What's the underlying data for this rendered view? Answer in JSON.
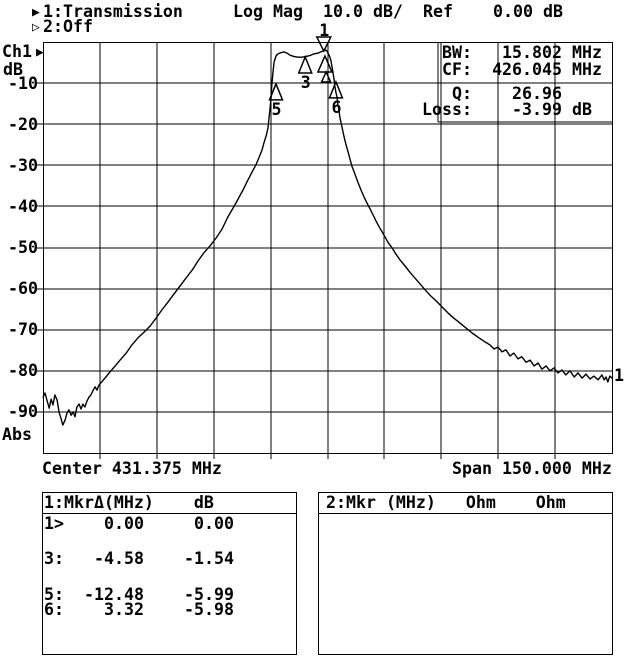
{
  "header": {
    "ch1_arrow": "▶",
    "ch1_title": "1:Transmission",
    "format": "Log Mag",
    "scale": "10.0 dB/",
    "ref_label": "Ref",
    "ref_value": "0.00 dB",
    "ch2_arrow": "▷",
    "ch2_title": "2:Off"
  },
  "axis": {
    "ch_label": "Ch1",
    "ch_arrow": "▶",
    "unit_label": "dB",
    "abs_label": "Abs",
    "y_tick_labels": [
      "-10",
      "-20",
      "-30",
      "-40",
      "-50",
      "-60",
      "-70",
      "-80",
      "-90"
    ],
    "center_label": "Center 431.375 MHz",
    "span_label": "Span 150.000 MHz"
  },
  "readout": {
    "rows": [
      {
        "label": "BW:",
        "num": "15.802",
        "unit": " MHz"
      },
      {
        "label": "CF:",
        "num": "426.045",
        "unit": " MHz"
      },
      {
        "label": "Q:",
        "num": "26.96",
        "unit": ""
      },
      {
        "label": "Loss:",
        "num": "-3.99",
        "unit": " dB"
      }
    ]
  },
  "marker_table": {
    "left": {
      "header": "1:MkrΔ(MHz)    dB",
      "rows": [
        {
          "id": "1>",
          "delta": "0.00",
          "db": "0.00"
        },
        {
          "id": "3:",
          "delta": "-4.58",
          "db": "-1.54"
        },
        {
          "id": "5:",
          "delta": "-12.48",
          "db": "-5.99"
        },
        {
          "id": "6:",
          "delta": "3.32",
          "db": "-5.98"
        }
      ]
    },
    "right": {
      "header": "2:Mkr (MHz)   Ohm    Ohm"
    }
  },
  "chart_data": {
    "type": "line",
    "title": "Ch1 1:Transmission Log Mag 10.0 dB/ Ref 0.00 dB",
    "xlabel": "Frequency (MHz), Center 431.375 MHz, Span 150.000 MHz",
    "ylabel": "dB (Abs)",
    "x_center": 431.375,
    "x_span": 150.0,
    "x_range": [
      356.375,
      506.375
    ],
    "y_range": [
      -100,
      0
    ],
    "y_ticks": [
      -10,
      -20,
      -30,
      -40,
      -50,
      -60,
      -70,
      -80,
      -90
    ],
    "grid_divisions": [
      10,
      10
    ],
    "bandwidth_MHz": 15.802,
    "center_freq_MHz": 426.045,
    "q_factor": 26.96,
    "loss_dB": -3.99,
    "trace_end_label": "1",
    "markers": [
      {
        "label": "1",
        "shape": "down",
        "f": 430.4,
        "db": -2.2,
        "w": 14,
        "h": 14
      },
      {
        "label": "",
        "shape": "up",
        "f": 430.7,
        "db": -3.4,
        "w": 14,
        "h": 16
      },
      {
        "label": "",
        "shape": "up",
        "f": 431.0,
        "db": -7.3,
        "w": 9,
        "h": 10
      },
      {
        "label": "3",
        "shape": "up",
        "f": 425.5,
        "db": -3.65,
        "w": 13,
        "h": 16
      },
      {
        "label": "5",
        "shape": "up",
        "f": 417.8,
        "db": -10.2,
        "w": 13,
        "h": 16
      },
      {
        "label": "6",
        "shape": "up",
        "f": 433.6,
        "db": -9.7,
        "w": 13,
        "h": 16
      }
    ],
    "series": [
      {
        "name": "transmission-trace",
        "points": [
          [
            356.4,
            -86.4
          ],
          [
            356.9,
            -85.4
          ],
          [
            357.4,
            -87.1
          ],
          [
            358.0,
            -89.1
          ],
          [
            358.5,
            -86.9
          ],
          [
            359.0,
            -88.3
          ],
          [
            359.5,
            -85.9
          ],
          [
            360.1,
            -87.1
          ],
          [
            360.6,
            -90.0
          ],
          [
            361.1,
            -91.5
          ],
          [
            361.6,
            -93.2
          ],
          [
            362.2,
            -92.0
          ],
          [
            362.7,
            -90.3
          ],
          [
            363.2,
            -89.5
          ],
          [
            363.8,
            -90.8
          ],
          [
            364.3,
            -90.0
          ],
          [
            364.8,
            -91.2
          ],
          [
            365.3,
            -88.8
          ],
          [
            365.9,
            -88.1
          ],
          [
            366.4,
            -89.3
          ],
          [
            366.9,
            -88.1
          ],
          [
            367.4,
            -88.8
          ],
          [
            368.0,
            -87.3
          ],
          [
            368.5,
            -86.4
          ],
          [
            369.0,
            -85.9
          ],
          [
            369.6,
            -84.7
          ],
          [
            370.1,
            -83.9
          ],
          [
            370.6,
            -84.7
          ],
          [
            371.1,
            -83.5
          ],
          [
            372.7,
            -81.8
          ],
          [
            374.0,
            -80.3
          ],
          [
            375.4,
            -78.8
          ],
          [
            376.7,
            -77.4
          ],
          [
            378.3,
            -75.7
          ],
          [
            379.8,
            -73.7
          ],
          [
            381.4,
            -72.0
          ],
          [
            383.0,
            -70.6
          ],
          [
            384.6,
            -69.1
          ],
          [
            386.2,
            -67.2
          ],
          [
            387.7,
            -65.2
          ],
          [
            389.3,
            -63.3
          ],
          [
            390.9,
            -61.3
          ],
          [
            392.5,
            -59.4
          ],
          [
            394.1,
            -57.4
          ],
          [
            395.7,
            -55.5
          ],
          [
            397.2,
            -53.3
          ],
          [
            398.8,
            -51.3
          ],
          [
            400.4,
            -49.6
          ],
          [
            402.0,
            -47.7
          ],
          [
            403.6,
            -45.5
          ],
          [
            405.1,
            -42.6
          ],
          [
            406.5,
            -40.4
          ],
          [
            407.8,
            -38.2
          ],
          [
            409.1,
            -36.0
          ],
          [
            410.4,
            -33.6
          ],
          [
            411.5,
            -31.6
          ],
          [
            412.5,
            -29.9
          ],
          [
            413.3,
            -28.2
          ],
          [
            414.1,
            -26.3
          ],
          [
            414.6,
            -24.6
          ],
          [
            415.2,
            -22.9
          ],
          [
            415.7,
            -20.9
          ],
          [
            415.9,
            -19.0
          ],
          [
            416.2,
            -16.5
          ],
          [
            416.5,
            -13.6
          ],
          [
            416.7,
            -10.5
          ],
          [
            417.0,
            -7.3
          ],
          [
            417.3,
            -4.9
          ],
          [
            417.8,
            -3.4
          ],
          [
            418.3,
            -2.9
          ],
          [
            419.1,
            -2.6
          ],
          [
            419.9,
            -2.4
          ],
          [
            420.7,
            -2.7
          ],
          [
            421.5,
            -3.2
          ],
          [
            422.5,
            -3.5
          ],
          [
            423.6,
            -3.7
          ],
          [
            424.6,
            -3.7
          ],
          [
            425.7,
            -3.5
          ],
          [
            426.7,
            -3.3
          ],
          [
            427.8,
            -2.9
          ],
          [
            428.9,
            -2.7
          ],
          [
            429.6,
            -2.4
          ],
          [
            430.4,
            -2.1
          ],
          [
            431.0,
            -2.0
          ],
          [
            431.2,
            -2.2
          ],
          [
            431.5,
            -2.7
          ],
          [
            432.0,
            -3.7
          ],
          [
            432.3,
            -4.6
          ],
          [
            432.5,
            -5.8
          ],
          [
            432.8,
            -7.3
          ],
          [
            433.1,
            -9.0
          ],
          [
            433.3,
            -10.7
          ],
          [
            433.6,
            -12.2
          ],
          [
            433.9,
            -13.6
          ],
          [
            434.1,
            -15.1
          ],
          [
            434.4,
            -16.5
          ],
          [
            434.6,
            -18.0
          ],
          [
            434.9,
            -19.5
          ],
          [
            435.2,
            -20.7
          ],
          [
            435.7,
            -22.9
          ],
          [
            436.2,
            -24.8
          ],
          [
            436.8,
            -26.8
          ],
          [
            437.3,
            -28.5
          ],
          [
            437.8,
            -30.2
          ],
          [
            438.6,
            -32.1
          ],
          [
            439.4,
            -34.1
          ],
          [
            440.2,
            -36.0
          ],
          [
            441.0,
            -37.7
          ],
          [
            441.8,
            -39.2
          ],
          [
            442.6,
            -40.6
          ],
          [
            443.4,
            -42.1
          ],
          [
            444.2,
            -43.6
          ],
          [
            445.2,
            -45.3
          ],
          [
            446.3,
            -47.0
          ],
          [
            447.3,
            -48.7
          ],
          [
            448.4,
            -50.1
          ],
          [
            449.4,
            -51.6
          ],
          [
            450.5,
            -53.0
          ],
          [
            451.8,
            -54.5
          ],
          [
            453.1,
            -56.0
          ],
          [
            454.4,
            -57.4
          ],
          [
            455.8,
            -58.9
          ],
          [
            457.1,
            -60.3
          ],
          [
            458.4,
            -61.6
          ],
          [
            460.0,
            -63.0
          ],
          [
            461.6,
            -64.5
          ],
          [
            463.1,
            -65.9
          ],
          [
            464.7,
            -67.2
          ],
          [
            466.3,
            -68.4
          ],
          [
            467.9,
            -69.6
          ],
          [
            469.5,
            -70.8
          ],
          [
            471.0,
            -71.8
          ],
          [
            472.6,
            -72.8
          ],
          [
            474.2,
            -73.7
          ],
          [
            475.3,
            -74.7
          ],
          [
            476.3,
            -74.2
          ],
          [
            477.4,
            -75.4
          ],
          [
            478.4,
            -74.9
          ],
          [
            479.5,
            -76.4
          ],
          [
            480.5,
            -75.7
          ],
          [
            481.6,
            -77.1
          ],
          [
            482.6,
            -76.6
          ],
          [
            483.7,
            -77.9
          ],
          [
            484.8,
            -77.4
          ],
          [
            485.8,
            -78.8
          ],
          [
            486.9,
            -78.1
          ],
          [
            487.9,
            -79.6
          ],
          [
            489.0,
            -78.8
          ],
          [
            490.0,
            -80.0
          ],
          [
            491.1,
            -79.3
          ],
          [
            492.1,
            -80.5
          ],
          [
            493.2,
            -79.8
          ],
          [
            494.2,
            -81.0
          ],
          [
            495.3,
            -80.0
          ],
          [
            496.4,
            -81.5
          ],
          [
            497.4,
            -80.5
          ],
          [
            498.5,
            -81.8
          ],
          [
            499.5,
            -80.8
          ],
          [
            500.6,
            -82.0
          ],
          [
            501.6,
            -81.3
          ],
          [
            502.7,
            -82.2
          ],
          [
            503.7,
            -81.0
          ],
          [
            504.3,
            -82.2
          ],
          [
            504.8,
            -81.5
          ],
          [
            505.3,
            -82.7
          ],
          [
            505.8,
            -81.3
          ],
          [
            506.4,
            -81.8
          ]
        ]
      }
    ]
  }
}
